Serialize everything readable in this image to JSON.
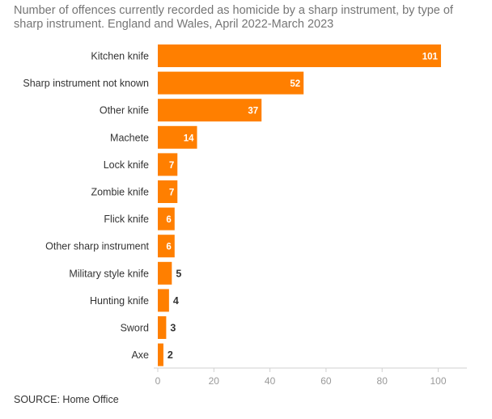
{
  "chart_data": {
    "type": "bar",
    "orientation": "horizontal",
    "title": "Number of offences currently recorded as homicide by a sharp instrument, by type of sharp instrument. England and Wales, April 2022-March 2023",
    "categories": [
      "Kitchen knife",
      "Sharp instrument not known",
      "Other knife",
      "Machete",
      "Lock knife",
      "Zombie knife",
      "Flick knife",
      "Other sharp instrument",
      "Military style knife",
      "Hunting knife",
      "Sword",
      "Axe"
    ],
    "values": [
      101,
      52,
      37,
      14,
      7,
      7,
      6,
      6,
      5,
      4,
      3,
      2
    ],
    "xlim": [
      0,
      110
    ],
    "x_ticks": [
      0,
      20,
      40,
      60,
      80,
      100
    ],
    "xlabel": "",
    "ylabel": "",
    "grid": false,
    "bar_color": "#ff7f00",
    "source": "SOURCE: Home Office"
  }
}
